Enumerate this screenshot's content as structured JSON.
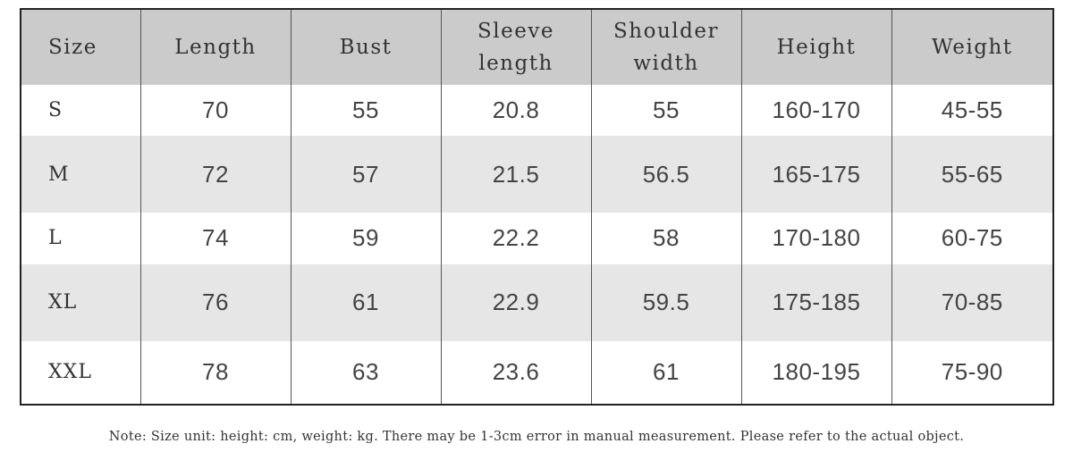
{
  "table": {
    "headers": [
      [
        "Size"
      ],
      [
        "Length"
      ],
      [
        "Bust"
      ],
      [
        "Sleeve",
        "length"
      ],
      [
        "Shoulder",
        "width"
      ],
      [
        "Height"
      ],
      [
        "Weight"
      ]
    ],
    "rows": [
      [
        "S",
        "70",
        "55",
        "20.8",
        "55",
        "160-170",
        "45-55"
      ],
      [
        "M",
        "72",
        "57",
        "21.5",
        "56.5",
        "165-175",
        "55-65"
      ],
      [
        "L",
        "74",
        "59",
        "22.2",
        "58",
        "170-180",
        "60-75"
      ],
      [
        "XL",
        "76",
        "61",
        "22.9",
        "59.5",
        "175-185",
        "70-85"
      ],
      [
        "XXL",
        "78",
        "63",
        "23.6",
        "61",
        "180-195",
        "75-90"
      ]
    ]
  },
  "note": "Note: Size unit: height: cm, weight: kg. There may be 1-3cm error in manual measurement. Please refer to the actual object."
}
